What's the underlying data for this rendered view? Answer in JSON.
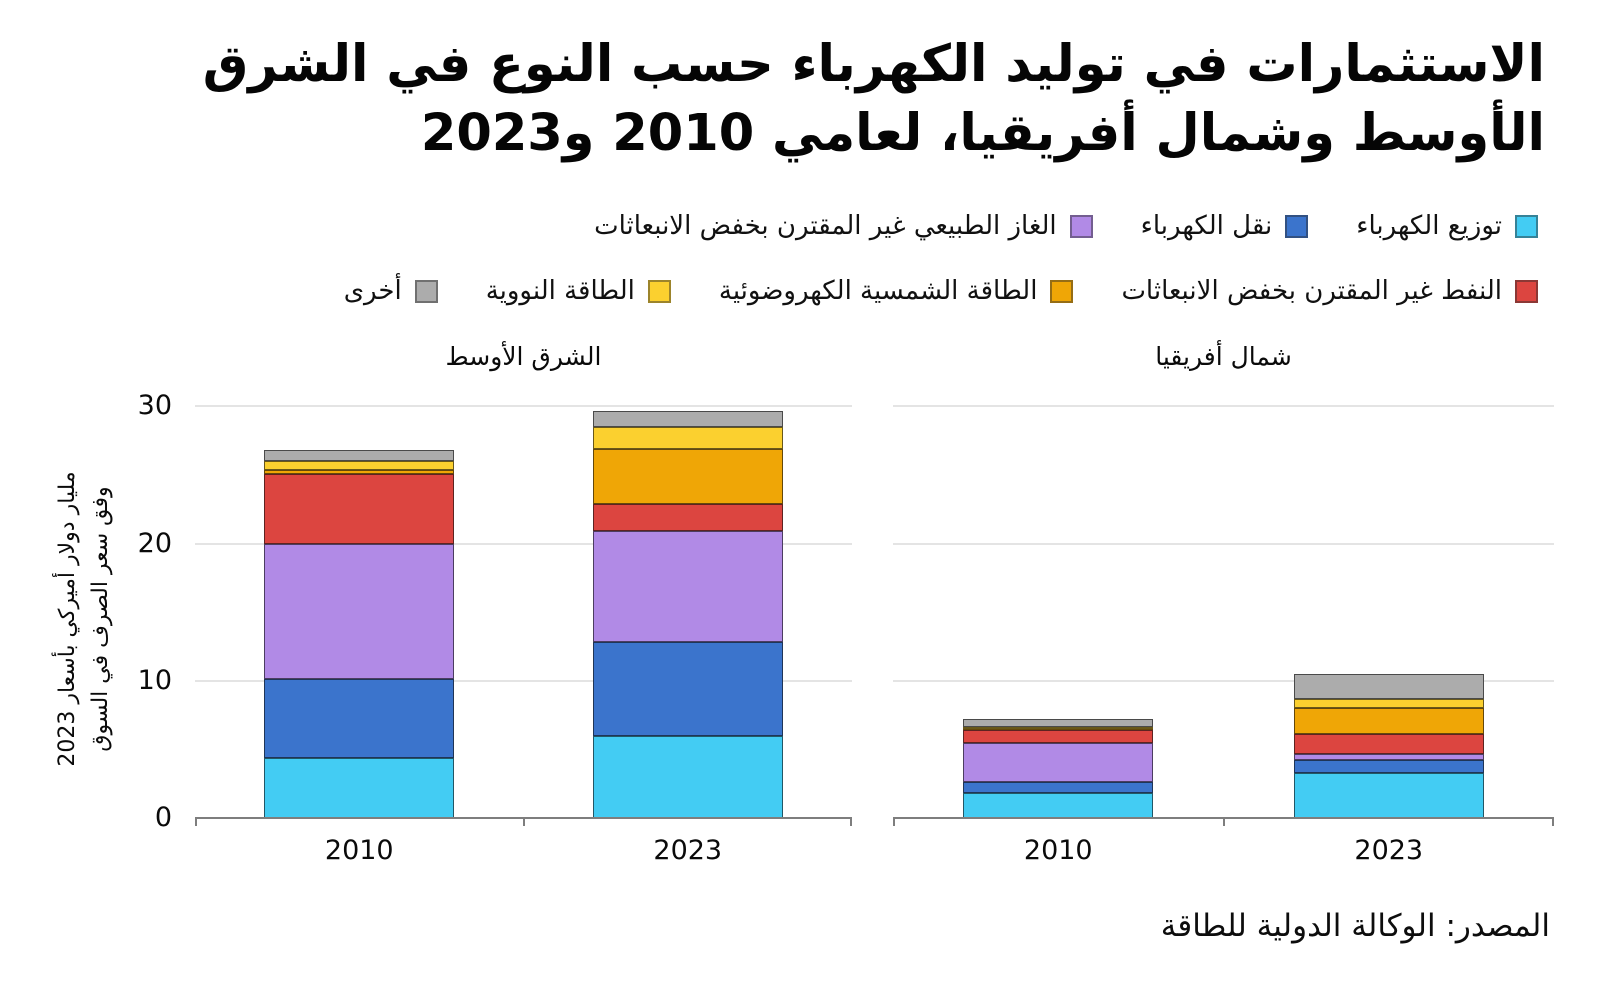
{
  "header": {
    "title_lines": [
      "الاستثمارات في توليد الكهرباء حسب النوع في الشرق",
      "الأوسط وشمال أفريقيا، لعامي 2010 و2023"
    ]
  },
  "legend": {
    "rows": [
      [
        {
          "label": "توزيع الكهرباء",
          "color": "#43CCF3"
        },
        {
          "label": "نقل الكهرباء",
          "color": "#3B74CC"
        },
        {
          "label": "الغاز الطبيعي غير المقترن بخفض الانبعاثات",
          "color": "#B18AE6"
        }
      ],
      [
        {
          "label": "النفط غير المقترن بخفض الانبعاثات",
          "color": "#DC4540"
        },
        {
          "label": "الطاقة الشمسية الكهروضوئية",
          "color": "#EFA606"
        },
        {
          "label": "الطاقة النووية",
          "color": "#FBD02F"
        },
        {
          "label": "أخرى",
          "color": "#ACACAC"
        }
      ]
    ]
  },
  "y_axis": {
    "label_lines": [
      "مليار دولار أميركي بأسعار 2023",
      "وفق سعر الصرف في السوق"
    ],
    "ticks": [
      0,
      10,
      20,
      30
    ]
  },
  "source": "المصدر: الوكالة الدولية للطاقة",
  "chart_data": {
    "type": "bar",
    "stacked": true,
    "title": "الاستثمارات في توليد الكهرباء حسب النوع في الشرق الأوسط وشمال أفريقيا، لعامي 2010 و2023",
    "ylabel": "مليار دولار أميركي بأسعار 2023 وفق سعر الصرف في السوق",
    "ylim": [
      0,
      31.2
    ],
    "y_ticks": [
      0,
      10,
      20,
      30
    ],
    "grid": "horizontal",
    "legend_position": "top",
    "panels": [
      {
        "title": "الشرق الأوسط",
        "categories": [
          "2010",
          "2023"
        ],
        "series": [
          {
            "name": "توزيع الكهرباء",
            "color": "#43CCF3",
            "values": [
              4.4,
              6.0
            ]
          },
          {
            "name": "نقل الكهرباء",
            "color": "#3B74CC",
            "values": [
              5.7,
              6.8
            ]
          },
          {
            "name": "الغاز الطبيعي غير المقترن بخفض الانبعاثات",
            "color": "#B18AE6",
            "values": [
              9.9,
              8.1
            ]
          },
          {
            "name": "النفط غير المقترن بخفض الانبعاثات",
            "color": "#DC4540",
            "values": [
              5.1,
              2.0
            ]
          },
          {
            "name": "الطاقة الشمسية الكهروضوئية",
            "color": "#EFA606",
            "values": [
              0.3,
              4.0
            ]
          },
          {
            "name": "الطاقة النووية",
            "color": "#FBD02F",
            "values": [
              0.6,
              1.6
            ]
          },
          {
            "name": "أخرى",
            "color": "#ACACAC",
            "values": [
              0.8,
              1.2
            ]
          }
        ]
      },
      {
        "title": "شمال أفريقيا",
        "categories": [
          "2010",
          "2023"
        ],
        "series": [
          {
            "name": "توزيع الكهرباء",
            "color": "#43CCF3",
            "values": [
              1.8,
              3.25
            ]
          },
          {
            "name": "نقل الكهرباء",
            "color": "#3B74CC",
            "values": [
              0.8,
              0.95
            ]
          },
          {
            "name": "الغاز الطبيعي غير المقترن بخفض الانبعاثات",
            "color": "#B18AE6",
            "values": [
              2.9,
              0.5
            ]
          },
          {
            "name": "النفط غير المقترن بخفض الانبعاثات",
            "color": "#DC4540",
            "values": [
              0.9,
              1.4
            ]
          },
          {
            "name": "الطاقة الشمسية الكهروضوئية",
            "color": "#EFA606",
            "values": [
              0.15,
              1.9
            ]
          },
          {
            "name": "الطاقة النووية",
            "color": "#FBD02F",
            "values": [
              0.05,
              0.7
            ]
          },
          {
            "name": "أخرى",
            "color": "#ACACAC",
            "values": [
              1.8,
              1.8
            ]
          }
        ]
      }
    ]
  }
}
